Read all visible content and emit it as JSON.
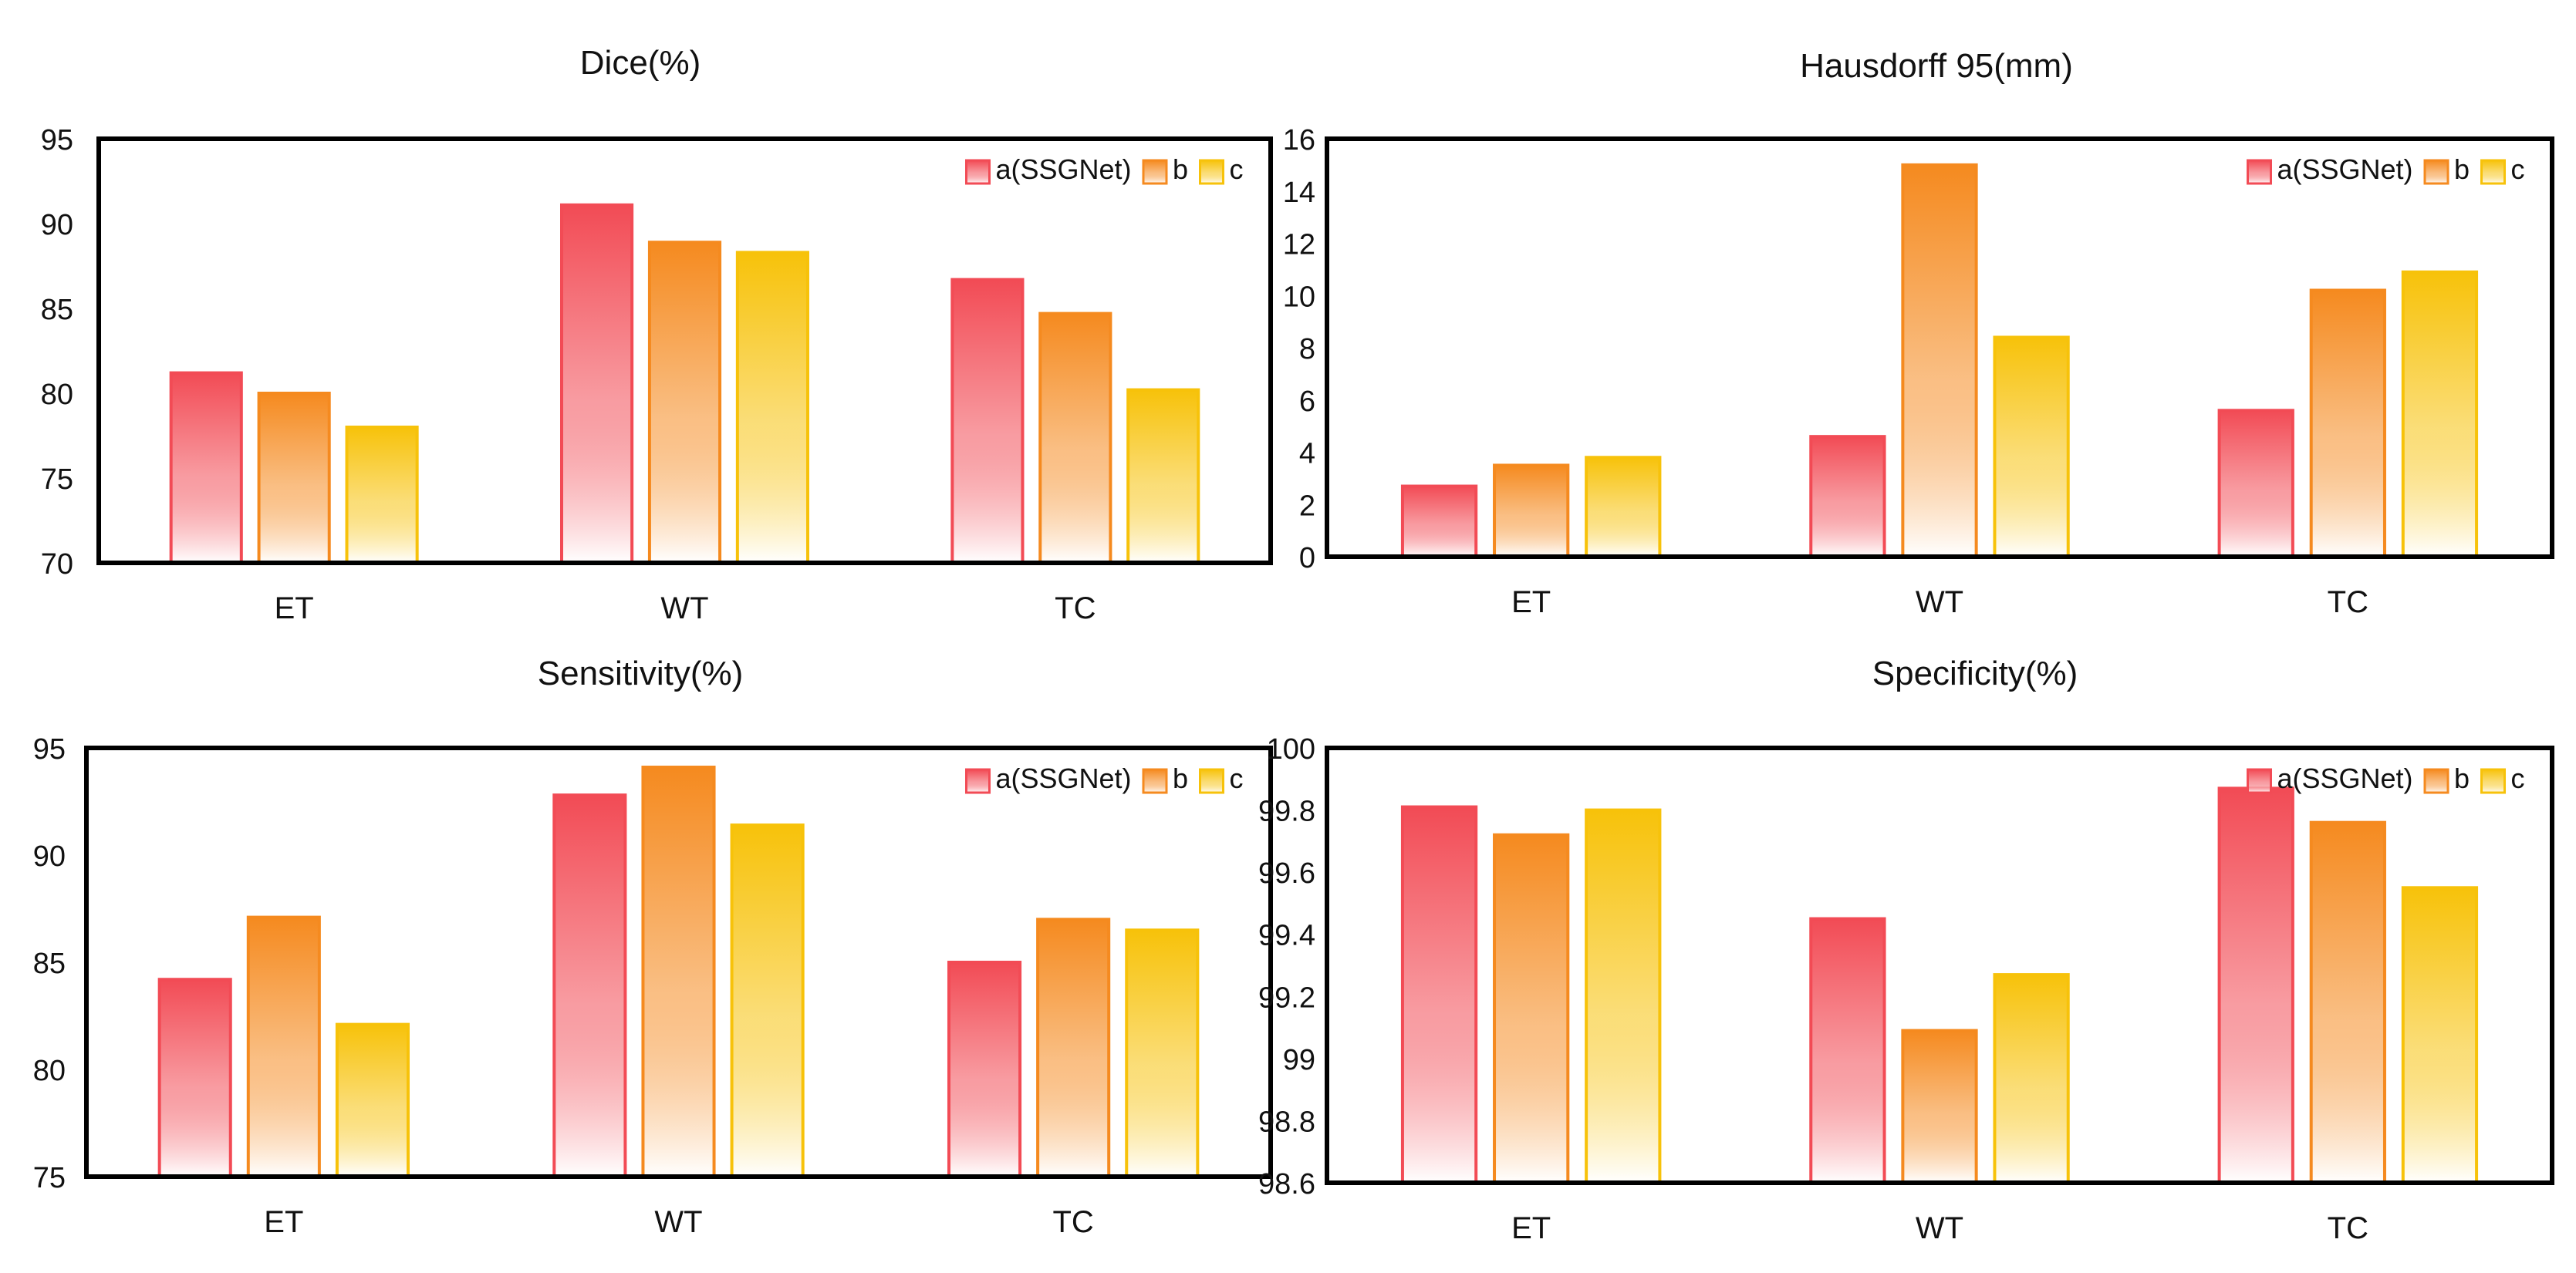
{
  "colors": {
    "a": "#f24b55",
    "b": "#f58a1f",
    "c": "#f7c20a",
    "axis": "#000000"
  },
  "chart_data": [
    {
      "type": "bar",
      "title": "Dice(%)",
      "categories": [
        "ET",
        "WT",
        "TC"
      ],
      "series": [
        {
          "name": "a(SSGNet)",
          "values": [
            81.2,
            91.1,
            86.7
          ]
        },
        {
          "name": "b",
          "values": [
            80.0,
            88.9,
            84.7
          ]
        },
        {
          "name": "c",
          "values": [
            78.0,
            88.3,
            80.2
          ]
        }
      ],
      "ylim": [
        70,
        95
      ],
      "yticks": [
        "70",
        "75",
        "80",
        "85",
        "90",
        "95"
      ],
      "legend": "top-right"
    },
    {
      "type": "bar",
      "title": "Hausdorff 95(mm)",
      "categories": [
        "ET",
        "WT",
        "TC"
      ],
      "series": [
        {
          "name": "a(SSGNet)",
          "values": [
            2.7,
            4.6,
            5.6
          ]
        },
        {
          "name": "b",
          "values": [
            3.5,
            15.0,
            10.2
          ]
        },
        {
          "name": "c",
          "values": [
            3.8,
            8.4,
            10.9
          ]
        }
      ],
      "ylim": [
        0,
        16
      ],
      "yticks": [
        "0",
        "2",
        "4",
        "6",
        "8",
        "10",
        "12",
        "14",
        "16"
      ],
      "legend": "top-right"
    },
    {
      "type": "bar",
      "title": "Sensitivity(%)",
      "categories": [
        "ET",
        "WT",
        "TC"
      ],
      "series": [
        {
          "name": "a(SSGNet)",
          "values": [
            84.2,
            92.8,
            85.0
          ]
        },
        {
          "name": "b",
          "values": [
            87.1,
            94.1,
            87.0
          ]
        },
        {
          "name": "c",
          "values": [
            82.1,
            91.4,
            86.5
          ]
        }
      ],
      "ylim": [
        75,
        95
      ],
      "yticks": [
        "75",
        "80",
        "85",
        "90",
        "95"
      ],
      "legend": "top-right"
    },
    {
      "type": "bar",
      "title": "Specificity(%)",
      "categories": [
        "ET",
        "WT",
        "TC"
      ],
      "series": [
        {
          "name": "a(SSGNet)",
          "values": [
            99.81,
            99.45,
            99.87
          ]
        },
        {
          "name": "b",
          "values": [
            99.72,
            99.09,
            99.76
          ]
        },
        {
          "name": "c",
          "values": [
            99.8,
            99.27,
            99.55
          ]
        }
      ],
      "ylim": [
        98.6,
        100
      ],
      "yticks": [
        "98.6",
        "98.8",
        "99",
        "99.2",
        "99.4",
        "99.6",
        "99.8",
        "100"
      ],
      "legend": "top-right"
    }
  ]
}
